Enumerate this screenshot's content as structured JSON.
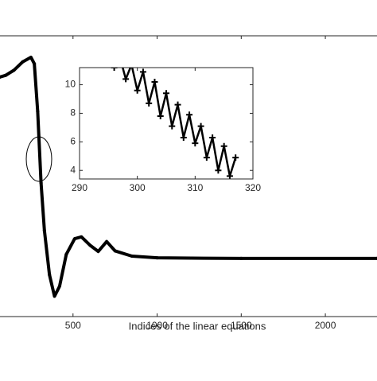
{
  "chart_data": [
    {
      "type": "line",
      "xlabel": "Indices of the linear equations",
      "x": [
        66,
        100,
        150,
        200,
        250,
        270,
        290,
        310,
        330,
        360,
        390,
        420,
        460,
        510,
        550,
        600,
        650,
        700,
        750,
        850,
        1000,
        1500,
        2307
      ],
      "series": [
        {
          "color": "#000000",
          "values": [
            21.6,
            21.9,
            22.8,
            24.2,
            25.0,
            23.9,
            15.7,
            3.4,
            -4.8,
            -12.4,
            -16.1,
            -14.4,
            -8.9,
            -6.2,
            -5.9,
            -7.3,
            -8.4,
            -6.7,
            -8.3,
            -9.2,
            -9.5,
            -9.6,
            -9.6
          ]
        }
      ],
      "xlim": [
        66,
        2307
      ],
      "ylim": [
        -19.6,
        28.7
      ],
      "xticks": [
        500,
        1000,
        1500,
        2000
      ]
    },
    {
      "type": "line",
      "x": [
        296,
        297,
        298,
        299,
        300,
        301,
        302,
        303,
        304,
        305,
        306,
        307,
        308,
        309,
        310,
        311,
        312,
        313,
        314,
        315,
        316,
        317
      ],
      "series": [
        {
          "color": "#000000",
          "values": [
            11.2,
            11.9,
            10.4,
            11.4,
            9.6,
            10.9,
            8.7,
            10.2,
            7.8,
            9.4,
            7.1,
            8.6,
            6.3,
            7.9,
            5.9,
            7.1,
            4.9,
            6.3,
            4.0,
            5.7,
            3.6,
            4.9
          ]
        }
      ],
      "xlim": [
        290,
        320
      ],
      "ylim": [
        3.4,
        11.2
      ],
      "xticks": [
        290,
        300,
        310,
        320
      ],
      "yticks": [
        4,
        6,
        8,
        10
      ]
    }
  ]
}
